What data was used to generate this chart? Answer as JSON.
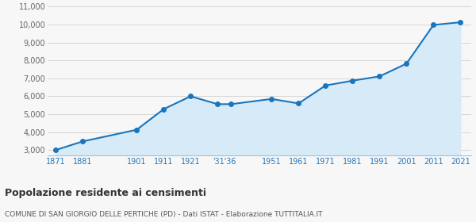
{
  "population": [
    3000,
    3480,
    4130,
    5280,
    6000,
    5560,
    5560,
    5850,
    5600,
    6600,
    6870,
    7110,
    7820,
    9980,
    10130
  ],
  "line_color": "#1a75bc",
  "fill_color": "#d6eaf8",
  "marker_color": "#1a75bc",
  "bg_color": "#f7f7f7",
  "grid_color": "#d0d0d0",
  "title": "Popolazione residente ai censimenti",
  "subtitle": "COMUNE DI SAN GIORGIO DELLE PERTICHE (PD) - Dati ISTAT - Elaborazione TUTTITALIA.IT",
  "ylim_min": 2700,
  "ylim_max": 11000,
  "yticks": [
    3000,
    4000,
    5000,
    6000,
    7000,
    8000,
    9000,
    10000,
    11000
  ],
  "ytick_labels": [
    "3,000",
    "4,000",
    "5,000",
    "6,000",
    "7,000",
    "8,000",
    "9,000",
    "10,000",
    "11,000"
  ],
  "x_positions": [
    0,
    1,
    3,
    4,
    5,
    6,
    6.5,
    8,
    9,
    10,
    11,
    12,
    13,
    14,
    15
  ],
  "xtick_pos": [
    0,
    1,
    3,
    4,
    5,
    6.25,
    8,
    9,
    10,
    11,
    12,
    13,
    14,
    15
  ],
  "xtick_labels": [
    "1871",
    "1881",
    "1901",
    "1911",
    "1921",
    "'31'36",
    "1951",
    "1961",
    "1971",
    "1981",
    "1991",
    "2001",
    "2011",
    "2021"
  ],
  "xlim_min": -0.3,
  "xlim_max": 15.4
}
